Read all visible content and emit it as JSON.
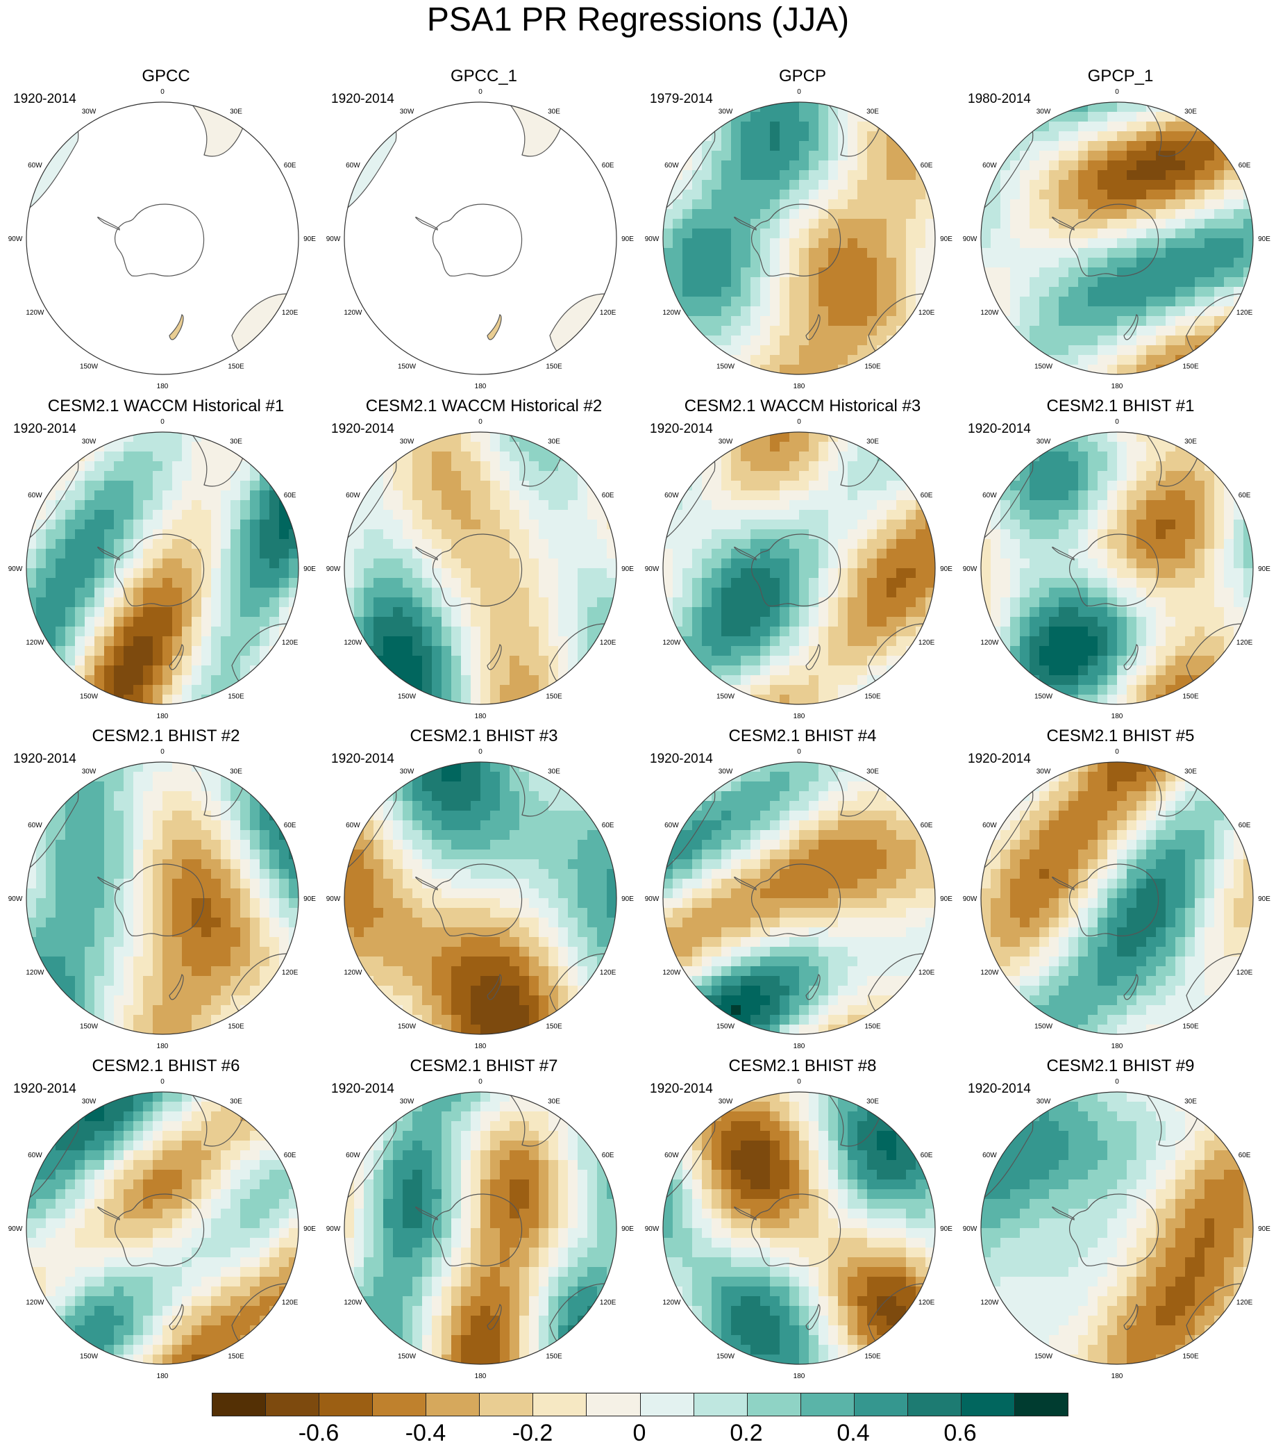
{
  "title": "PSA1 PR Regressions (JJA)",
  "lon_labels": [
    "0",
    "30E",
    "60E",
    "90E",
    "120E",
    "150E",
    "180",
    "150W",
    "120W",
    "90W",
    "60W",
    "30W"
  ],
  "colors": {
    "land_outline": "#555555",
    "map_border": "#333333",
    "missing": "#ffffff"
  },
  "colorbar": {
    "colors": [
      "#543005",
      "#7d4a0e",
      "#9c5f13",
      "#bf812d",
      "#d6a85c",
      "#e9cd92",
      "#f6e8c3",
      "#f5f1e6",
      "#e3f2f0",
      "#bfe7e0",
      "#8fd3c5",
      "#5ab4a8",
      "#35978f",
      "#1d7b72",
      "#01665e",
      "#003c30"
    ],
    "tick_labels": [
      "-0.6",
      "-0.4",
      "-0.2",
      "0",
      "0.2",
      "0.4",
      "0.6"
    ]
  },
  "panels": [
    {
      "title": "GPCC",
      "period": "1920-2014",
      "coverage": "land"
    },
    {
      "title": "GPCC_1",
      "period": "1920-2014",
      "coverage": "land"
    },
    {
      "title": "GPCP",
      "period": "1979-2014",
      "coverage": "full"
    },
    {
      "title": "GPCP_1",
      "period": "1980-2014",
      "coverage": "full"
    },
    {
      "title": "CESM2.1 WACCM Historical #1",
      "period": "1920-2014",
      "coverage": "full"
    },
    {
      "title": "CESM2.1 WACCM Historical #2",
      "period": "1920-2014",
      "coverage": "full"
    },
    {
      "title": "CESM2.1 WACCM Historical #3",
      "period": "1920-2014",
      "coverage": "full"
    },
    {
      "title": "CESM2.1 BHIST #1",
      "period": "1920-2014",
      "coverage": "full"
    },
    {
      "title": "CESM2.1 BHIST #2",
      "period": "1920-2014",
      "coverage": "full"
    },
    {
      "title": "CESM2.1 BHIST #3",
      "period": "1920-2014",
      "coverage": "full"
    },
    {
      "title": "CESM2.1 BHIST #4",
      "period": "1920-2014",
      "coverage": "full"
    },
    {
      "title": "CESM2.1 BHIST #5",
      "period": "1920-2014",
      "coverage": "full"
    },
    {
      "title": "CESM2.1 BHIST #6",
      "period": "1920-2014",
      "coverage": "full"
    },
    {
      "title": "CESM2.1 BHIST #7",
      "period": "1920-2014",
      "coverage": "full"
    },
    {
      "title": "CESM2.1 BHIST #8",
      "period": "1920-2014",
      "coverage": "full"
    },
    {
      "title": "CESM2.1 BHIST #9",
      "period": "1920-2014",
      "coverage": "full"
    }
  ]
}
